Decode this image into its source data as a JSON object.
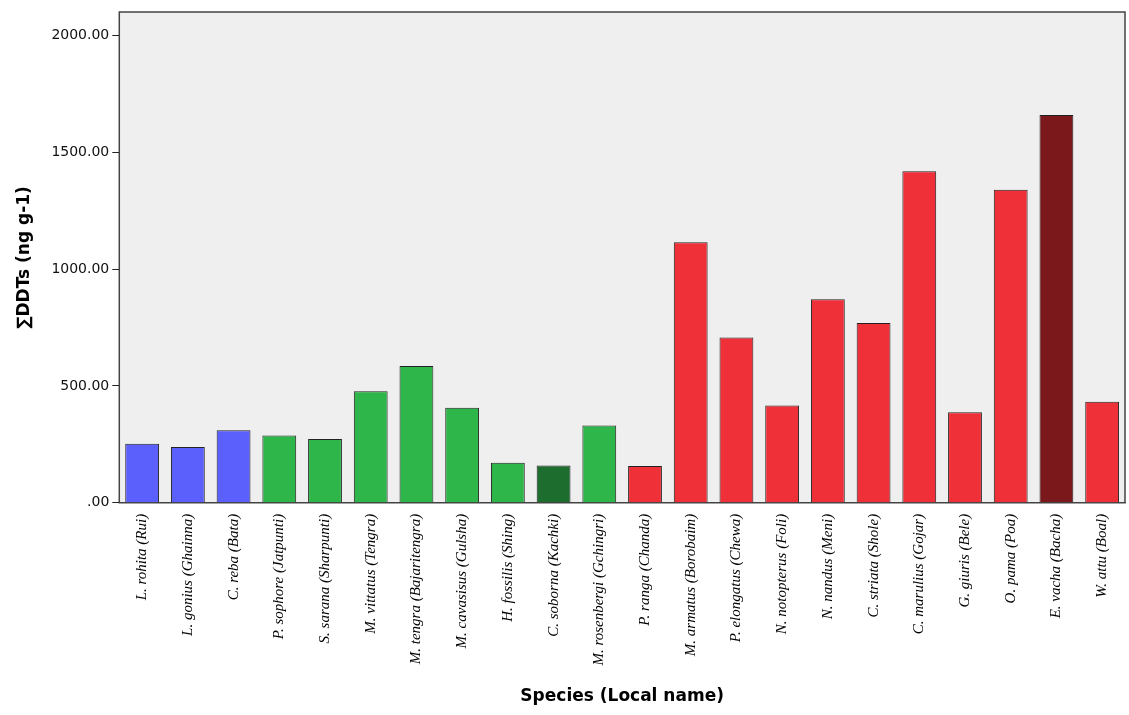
{
  "chart_data": {
    "type": "bar",
    "xlabel": "Species (Local name)",
    "ylabel": "∑DDTs (ng g-1)",
    "categories": [
      "L. rohita (Rui)",
      "L. gonius (Ghainna)",
      "C. reba (Bata)",
      "P. sophore (Jatpunti)",
      "S. sarana (Sharpunti)",
      "M. vittatus (Tengra)",
      "M. tengra (Bajaritengra)",
      "M. cavasisus (Gulsha)",
      "H. fossilis (Shing)",
      "C. soborna (Kachki)",
      "M. rosenbergi (Gchingri)",
      "P. ranga (Chanda)",
      "M. armatus (Borobaim)",
      "P. elongatus (Chewa)",
      "N. notopterus (Foli)",
      "N. nandus (Meni)",
      "C. striata (Shole)",
      "C. marulius (Gojar)",
      "G. giuris (Bele)",
      "O. pama (Poa)",
      "E. vacha (Bacha)",
      "W. attu (Boal)"
    ],
    "values": [
      253,
      239,
      310,
      288,
      273,
      477,
      585,
      407,
      171,
      160,
      331,
      158,
      1115,
      707,
      416,
      871,
      769,
      1419,
      388,
      1340,
      1659,
      432
    ],
    "colors": [
      "#5b5ffb",
      "#5b5ffb",
      "#5b5ffb",
      "#2fb64a",
      "#2fb64a",
      "#2fb64a",
      "#2fb64a",
      "#2fb64a",
      "#2fb64a",
      "#1d6e2e",
      "#2fb64a",
      "#ef3038",
      "#ef3038",
      "#ef3038",
      "#ef3038",
      "#ef3038",
      "#ef3038",
      "#ef3038",
      "#ef3038",
      "#ef3038",
      "#7a181c",
      "#ef3038"
    ],
    "ylim": [
      0,
      2100
    ],
    "yticks": [
      {
        "value": 0,
        "label": ".00"
      },
      {
        "value": 500,
        "label": "500.00"
      },
      {
        "value": 1000,
        "label": "1000.00"
      },
      {
        "value": 1500,
        "label": "1500.00"
      },
      {
        "value": 2000,
        "label": "2000.00"
      }
    ],
    "grid": false,
    "legend": false
  }
}
